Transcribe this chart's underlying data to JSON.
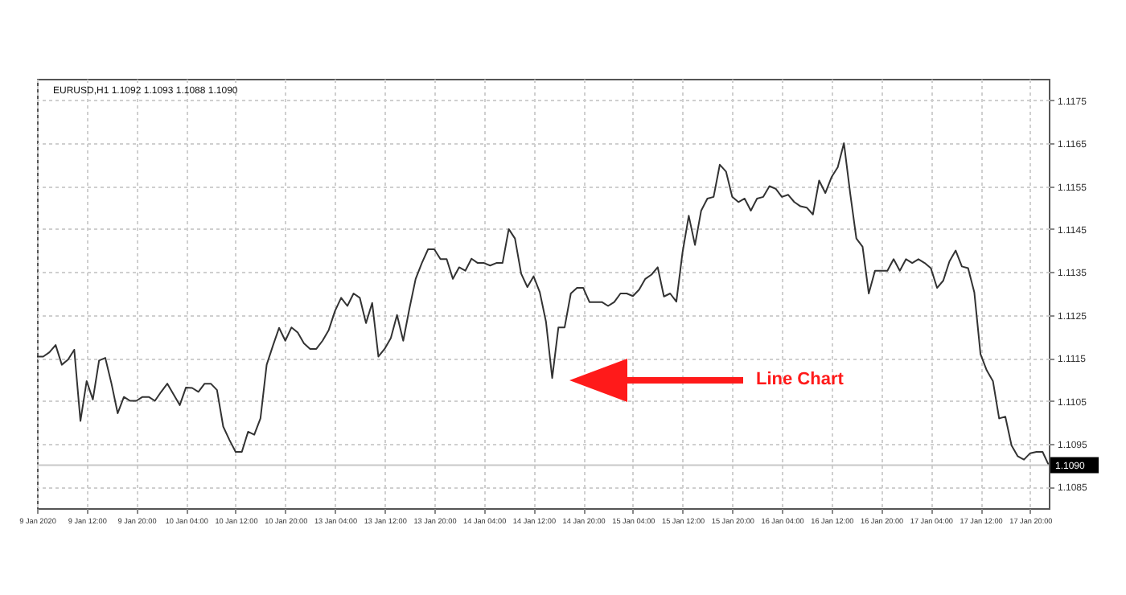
{
  "chart_data": {
    "type": "line",
    "title": "EURUSD,H1  1.1092 1.1093 1.1088 1.1090",
    "categories": [
      "9 Jan 2020",
      null,
      null,
      null,
      null,
      null,
      null,
      null,
      "9 Jan 12:00",
      null,
      null,
      null,
      null,
      null,
      null,
      null,
      "9 Jan 20:00",
      null,
      null,
      null,
      null,
      null,
      null,
      null,
      "10 Jan 04:00",
      null,
      null,
      null,
      null,
      null,
      null,
      null,
      "10 Jan 12:00",
      null,
      null,
      null,
      null,
      null,
      null,
      null,
      "10 Jan 20:00",
      null,
      null,
      null,
      null,
      null,
      null,
      null,
      "13 Jan 04:00",
      null,
      null,
      null,
      null,
      null,
      null,
      null,
      "13 Jan 12:00",
      null,
      null,
      null,
      null,
      null,
      null,
      null,
      "13 Jan 20:00",
      null,
      null,
      null,
      null,
      null,
      null,
      null,
      "14 Jan 04:00",
      null,
      null,
      null,
      null,
      null,
      null,
      null,
      "14 Jan 12:00",
      null,
      null,
      null,
      null,
      null,
      null,
      null,
      "14 Jan 20:00",
      null,
      null,
      null,
      null,
      null,
      null,
      null,
      "15 Jan 04:00",
      null,
      null,
      null,
      null,
      null,
      null,
      null,
      "15 Jan 12:00",
      null,
      null,
      null,
      null,
      null,
      null,
      null,
      "15 Jan 20:00",
      null,
      null,
      null,
      null,
      null,
      null,
      null,
      "16 Jan 04:00",
      null,
      null,
      null,
      null,
      null,
      null,
      null,
      "16 Jan 12:00",
      null,
      null,
      null,
      null,
      null,
      null,
      null,
      "16 Jan 20:00",
      null,
      null,
      null,
      null,
      null,
      null,
      null,
      "17 Jan 04:00",
      null,
      null,
      null,
      null,
      null,
      null,
      null,
      "17 Jan 12:00",
      null,
      null,
      null,
      null,
      null,
      null,
      null,
      "17 Jan 20:00",
      null,
      null,
      null
    ],
    "values": [
      1.11153,
      1.11153,
      1.11163,
      1.1118,
      1.11134,
      1.11146,
      1.11169,
      1.11003,
      1.11096,
      1.11053,
      1.11144,
      1.1115,
      1.1109,
      1.11021,
      1.11059,
      1.1105,
      1.1105,
      1.11059,
      1.11059,
      1.1105,
      1.11071,
      1.1109,
      1.11065,
      1.1104,
      1.11081,
      1.1108,
      1.11071,
      1.1109,
      1.1109,
      1.11075,
      1.1099,
      1.10959,
      1.10931,
      1.10931,
      1.10978,
      1.10971,
      1.11009,
      1.11134,
      1.11178,
      1.1122,
      1.1119,
      1.11221,
      1.11209,
      1.11184,
      1.11171,
      1.11171,
      1.1119,
      1.11215,
      1.11259,
      1.1129,
      1.11271,
      1.113,
      1.1129,
      1.11231,
      1.11278,
      1.11153,
      1.11171,
      1.11196,
      1.1125,
      1.1119,
      1.11265,
      1.11334,
      1.11371,
      1.11403,
      1.11403,
      1.1138,
      1.1138,
      1.11334,
      1.11361,
      1.11353,
      1.11381,
      1.11371,
      1.11371,
      1.11365,
      1.11371,
      1.11371,
      1.1145,
      1.11428,
      1.11346,
      1.11315,
      1.1134,
      1.11303,
      1.11234,
      1.11103,
      1.11221,
      1.11221,
      1.113,
      1.11313,
      1.11313,
      1.1128,
      1.1128,
      1.1128,
      1.11271,
      1.1128,
      1.113,
      1.113,
      1.11294,
      1.11309,
      1.11334,
      1.11344,
      1.11361,
      1.11293,
      1.113,
      1.11281,
      1.11396,
      1.11481,
      1.11413,
      1.11493,
      1.11521,
      1.11525,
      1.116,
      1.11584,
      1.11525,
      1.11513,
      1.11521,
      1.11493,
      1.11521,
      1.11525,
      1.1155,
      1.11544,
      1.11525,
      1.1153,
      1.11513,
      1.11503,
      1.115,
      1.11484,
      1.11563,
      1.11534,
      1.11571,
      1.11594,
      1.1165,
      1.11534,
      1.11428,
      1.11409,
      1.113,
      1.11353,
      1.11353,
      1.11353,
      1.1138,
      1.11353,
      1.1138,
      1.11371,
      1.1138,
      1.11371,
      1.11359,
      1.11313,
      1.1133,
      1.11375,
      1.114,
      1.11363,
      1.11359,
      1.11303,
      1.11159,
      1.11121,
      1.11096,
      1.11009,
      1.11013,
      1.10946,
      1.10921,
      1.10913,
      1.10928,
      1.10931,
      1.10931,
      1.109
    ],
    "color": "#333333",
    "ylim": [
      1.108,
      1.118
    ],
    "yticks": [
      1.1085,
      1.1095,
      1.1105,
      1.1115,
      1.1125,
      1.1135,
      1.1145,
      1.1155,
      1.1165,
      1.1175
    ],
    "grid": true,
    "ref_lines": [
      {
        "axis": "y",
        "value": 1.109,
        "label": "1.1090",
        "color": "#c8c8c8"
      }
    ],
    "annotations": [
      "Line Chart"
    ]
  }
}
